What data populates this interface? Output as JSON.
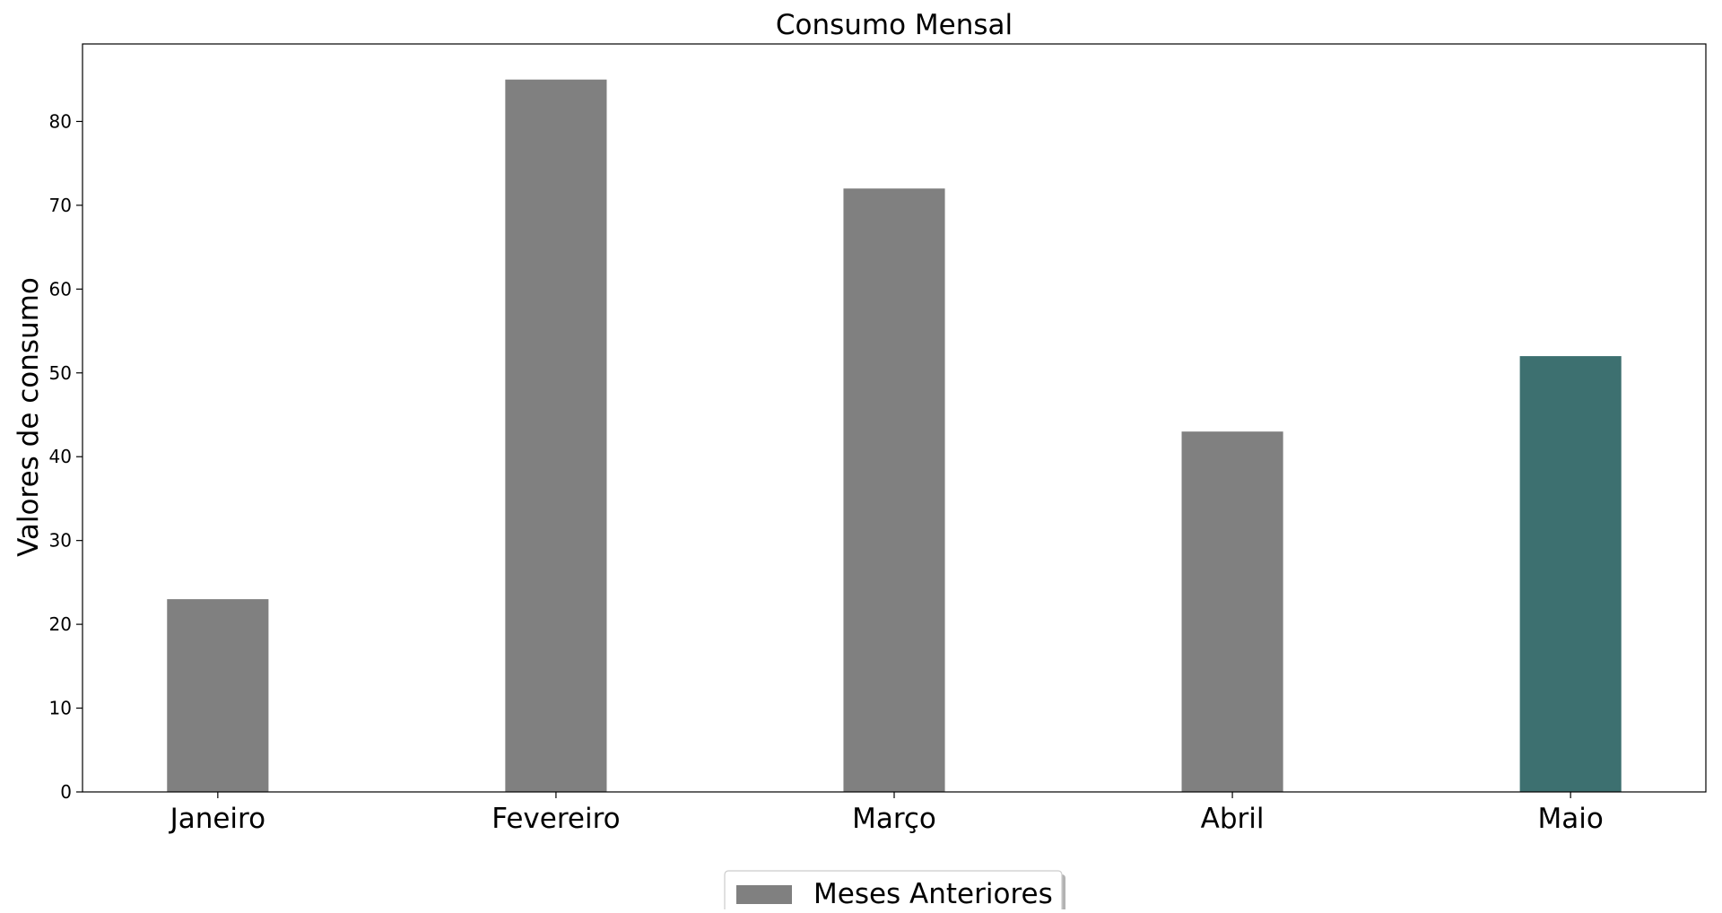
{
  "chart_data": {
    "type": "bar",
    "title": "Consumo Mensal",
    "xlabel": "",
    "ylabel": "Valores de consumo",
    "categories": [
      "Janeiro",
      "Fevereiro",
      "Março",
      "Abril",
      "Maio"
    ],
    "values": [
      23,
      85,
      72,
      43,
      52
    ],
    "bar_colors": [
      "#808080",
      "#808080",
      "#808080",
      "#808080",
      "#3d7070"
    ],
    "ylim": [
      0,
      89.25
    ],
    "yticks": [
      0,
      10,
      20,
      30,
      40,
      50,
      60,
      70,
      80
    ],
    "grid": false,
    "legend": {
      "position": "bottom-center",
      "entries": [
        {
          "label": "Meses Anteriores",
          "color": "#808080"
        }
      ]
    }
  }
}
